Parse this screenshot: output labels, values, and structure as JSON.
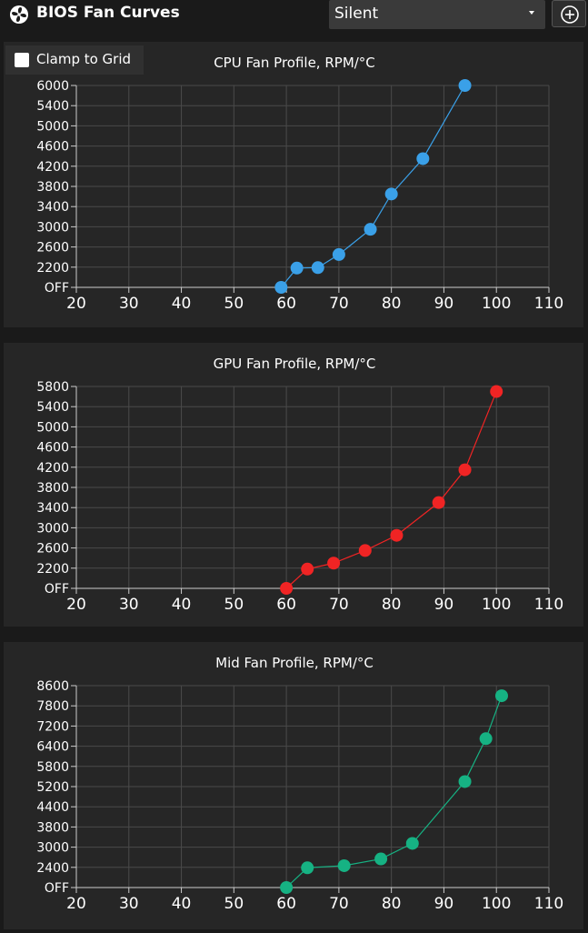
{
  "header": {
    "title": "BIOS Fan Curves",
    "app_icon": "fan-icon",
    "profile_value": "Silent",
    "add_icon": "plus-circle-icon"
  },
  "options": {
    "clamp_label": "Clamp to Grid",
    "clamp_checked": false
  },
  "colors": {
    "cpu": "#3aa0e8",
    "gpu": "#f02424",
    "mid": "#16b283",
    "grid": "#4a4a4a",
    "panel": "#262626"
  },
  "chart_data": [
    {
      "type": "line",
      "title": "CPU Fan Profile, RPM/°C",
      "x_ticks": [
        "20",
        "30",
        "40",
        "50",
        "60",
        "70",
        "80",
        "90",
        "100",
        "110"
      ],
      "y_ticks": [
        "OFF",
        "2200",
        "2600",
        "3000",
        "3400",
        "3800",
        "4200",
        "4600",
        "5000",
        "5400",
        "6000"
      ],
      "xlim": [
        20,
        110
      ],
      "x": [
        59,
        62,
        66,
        70,
        76,
        80,
        86,
        94
      ],
      "y": [
        0,
        2100,
        2150,
        2450,
        2950,
        3650,
        4350,
        6000
      ],
      "y_units": "RPM",
      "note_off": "OFF corresponds to 0 RPM"
    },
    {
      "type": "line",
      "title": "GPU Fan Profile, RPM/°C",
      "x_ticks": [
        "20",
        "30",
        "40",
        "50",
        "60",
        "70",
        "80",
        "90",
        "100",
        "110"
      ],
      "y_ticks": [
        "OFF",
        "2200",
        "2600",
        "3000",
        "3400",
        "3800",
        "4200",
        "4600",
        "5000",
        "5400",
        "5800"
      ],
      "xlim": [
        20,
        110
      ],
      "x": [
        60,
        64,
        69,
        75,
        81,
        89,
        94,
        100
      ],
      "y": [
        0,
        2100,
        2300,
        2550,
        2850,
        3500,
        4150,
        5700
      ],
      "y_units": "RPM"
    },
    {
      "type": "line",
      "title": "Mid Fan Profile, RPM/°C",
      "x_ticks": [
        "20",
        "30",
        "40",
        "50",
        "60",
        "70",
        "80",
        "90",
        "100",
        "110"
      ],
      "y_ticks": [
        "OFF",
        "2400",
        "3000",
        "3800",
        "4400",
        "5200",
        "5800",
        "6400",
        "7200",
        "7800",
        "8600"
      ],
      "xlim": [
        20,
        110
      ],
      "x": [
        60,
        64,
        71,
        78,
        84,
        94,
        98,
        101
      ],
      "y": [
        0,
        2350,
        2450,
        2650,
        3150,
        5350,
        6700,
        8200
      ],
      "y_units": "RPM"
    }
  ]
}
